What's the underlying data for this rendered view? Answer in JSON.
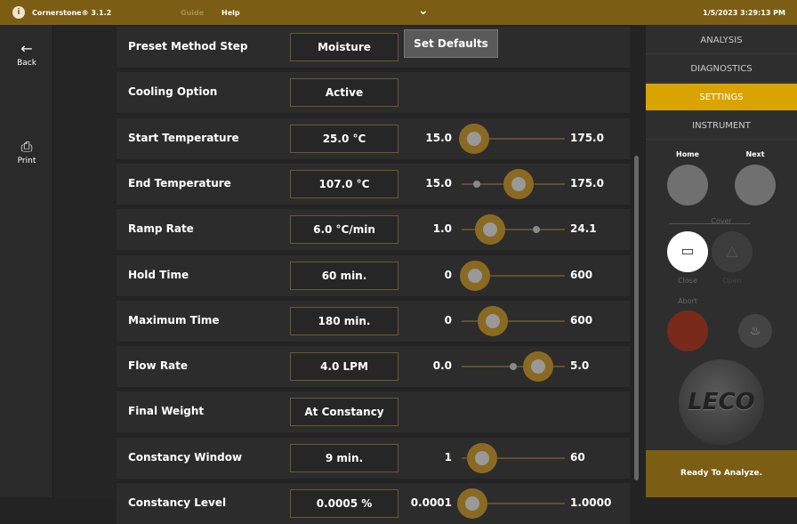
{
  "topbar": {
    "app_title": "Cornerstone® 3.1.2",
    "guide": "Guide",
    "help": "Help",
    "datetime": "1/5/2023 3:29:13 PM",
    "chevron": "chevron-down-icon"
  },
  "left": {
    "back": "Back",
    "print": "Print"
  },
  "rows": [
    {
      "label": "Preset Method Step",
      "value": "Moisture",
      "button": "Set Defaults"
    },
    {
      "label": "Cooling Option",
      "value": "Active"
    },
    {
      "label": "Start Temperature",
      "value": "25.0 °C",
      "min": "15.0",
      "max": "175.0",
      "ring": 0.12
    },
    {
      "label": "End Temperature",
      "value": "107.0 °C",
      "min": "15.0",
      "max": "175.0",
      "ring": 0.55,
      "dot": 0.15
    },
    {
      "label": "Ramp Rate",
      "value": "6.0 °C/min",
      "min": "1.0",
      "max": "24.1",
      "ring": 0.28,
      "dot": 0.72
    },
    {
      "label": "Hold Time",
      "value": "60 min.",
      "min": "0",
      "max": "600",
      "ring": 0.13,
      "dot": 0.07
    },
    {
      "label": "Maximum Time",
      "value": "180 min.",
      "min": "0",
      "max": "600",
      "ring": 0.3
    },
    {
      "label": "Flow Rate",
      "value": "4.0 LPM",
      "min": "0.0",
      "max": "5.0",
      "ring": 0.74,
      "dot": 0.5
    },
    {
      "label": "Final Weight",
      "value": "At Constancy"
    },
    {
      "label": "Constancy Window",
      "value": "9 min.",
      "min": "1",
      "max": "60",
      "ring": 0.2
    },
    {
      "label": "Constancy Level",
      "value": "0.0005 %",
      "min": "0.0001",
      "max": "1.0000",
      "ring": 0.1
    }
  ],
  "right": {
    "tabs": [
      "ANALYSIS",
      "DIAGNOSTICS",
      "SETTINGS",
      "INSTRUMENT"
    ],
    "active_tab": "SETTINGS",
    "home": "Home",
    "next": "Next",
    "cover": "Cover",
    "close": "Close",
    "open": "Open",
    "abort": "Abort",
    "logo": "LECO",
    "status": "Ready To Analyze."
  },
  "colors": {
    "accent": "#d9a400",
    "topbar": "#7b5e14",
    "abort": "#7a2a1a"
  }
}
